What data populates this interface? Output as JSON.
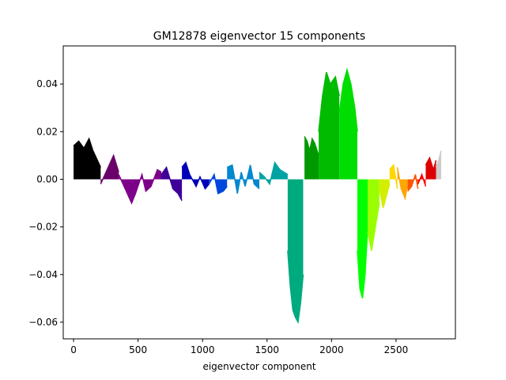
{
  "chart_data": {
    "type": "line",
    "title": "GM12878 eigenvector 15 components",
    "xlabel": "eigenvector component",
    "ylabel": "",
    "xlim": [
      -80,
      2960
    ],
    "ylim": [
      -0.067,
      0.056
    ],
    "xticks": [
      0,
      500,
      1000,
      1500,
      2000,
      2500
    ],
    "yticks": [
      -0.06,
      -0.04,
      -0.02,
      0.0,
      0.02,
      0.04
    ],
    "ytick_labels": [
      "−0.06",
      "−0.04",
      "−0.02",
      "0.00",
      "0.02",
      "0.04"
    ],
    "grid": false,
    "legend": "none",
    "fill_to_zero": true,
    "series": [
      {
        "color": "#000000",
        "x": [
          0,
          40,
          80,
          120,
          150,
          210
        ],
        "y": [
          0.014,
          0.016,
          0.013,
          0.017,
          0.012,
          0.005
        ]
      },
      {
        "color": "#6a006a",
        "x": [
          210,
          260,
          310,
          350
        ],
        "y": [
          -0.002,
          0.004,
          0.01,
          0.003
        ]
      },
      {
        "color": "#7d0089",
        "x": [
          350,
          400,
          450,
          480,
          530,
          560,
          600,
          650,
          680
        ],
        "y": [
          0.002,
          -0.004,
          -0.01,
          -0.006,
          0.002,
          -0.005,
          -0.003,
          0.004,
          0.003
        ]
      },
      {
        "color": "#3e0099",
        "x": [
          680,
          720,
          770,
          810,
          840
        ],
        "y": [
          0.002,
          0.005,
          -0.004,
          -0.006,
          -0.009
        ]
      },
      {
        "color": "#0000b8",
        "x": [
          840,
          870,
          900,
          950,
          980,
          1020,
          1050
        ],
        "y": [
          0.005,
          0.007,
          0.002,
          -0.003,
          0.001,
          -0.004,
          -0.002
        ]
      },
      {
        "color": "#0048dd",
        "x": [
          1050,
          1090,
          1120,
          1160,
          1190
        ],
        "y": [
          -0.002,
          0.002,
          -0.006,
          -0.005,
          -0.003
        ]
      },
      {
        "color": "#0088d0",
        "x": [
          1190,
          1230,
          1270,
          1300,
          1330,
          1370,
          1400,
          1440
        ],
        "y": [
          0.005,
          0.006,
          -0.006,
          0.003,
          -0.003,
          0.006,
          -0.002,
          -0.004
        ]
      },
      {
        "color": "#00a3a3",
        "x": [
          1440,
          1480,
          1520,
          1560,
          1600,
          1660
        ],
        "y": [
          0.003,
          0.001,
          -0.002,
          0.007,
          0.004,
          0.002
        ]
      },
      {
        "color": "#00aa7f",
        "x": [
          1660,
          1680,
          1700,
          1720,
          1740,
          1760,
          1780
        ],
        "y": [
          -0.03,
          -0.045,
          -0.055,
          -0.058,
          -0.06,
          -0.052,
          -0.04
        ]
      },
      {
        "color": "#009900",
        "x": [
          1790,
          1810,
          1830,
          1850,
          1870,
          1900
        ],
        "y": [
          0.018,
          0.016,
          0.012,
          0.017,
          0.015,
          0.01
        ]
      },
      {
        "color": "#00bb00",
        "x": [
          1900,
          1930,
          1960,
          1990,
          2030,
          2060
        ],
        "y": [
          0.02,
          0.035,
          0.045,
          0.04,
          0.043,
          0.035
        ]
      },
      {
        "color": "#00dd00",
        "x": [
          2060,
          2090,
          2120,
          2150,
          2180,
          2200
        ],
        "y": [
          0.028,
          0.04,
          0.046,
          0.04,
          0.03,
          0.02
        ]
      },
      {
        "color": "#00ff00",
        "x": [
          2200,
          2220,
          2240,
          2260,
          2280
        ],
        "y": [
          -0.03,
          -0.046,
          -0.05,
          -0.04,
          -0.02
        ]
      },
      {
        "color": "#99ff00",
        "x": [
          2280,
          2310,
          2340,
          2370
        ],
        "y": [
          -0.022,
          -0.03,
          -0.02,
          -0.01
        ]
      },
      {
        "color": "#d4ee00",
        "x": [
          2370,
          2400,
          2430,
          2450
        ],
        "y": [
          -0.004,
          -0.012,
          -0.006,
          -0.002
        ]
      },
      {
        "color": "#ffd700",
        "x": [
          2450,
          2480,
          2510
        ],
        "y": [
          0.004,
          0.006,
          -0.004
        ]
      },
      {
        "color": "#ffa600",
        "x": [
          2510,
          2540,
          2570,
          2590
        ],
        "y": [
          0.005,
          -0.004,
          -0.008,
          -0.002
        ]
      },
      {
        "color": "#ff5500",
        "x": [
          2590,
          2620,
          2650,
          2670
        ],
        "y": [
          -0.005,
          -0.003,
          0.002,
          -0.004
        ]
      },
      {
        "color": "#ff0000",
        "x": [
          2670,
          2700,
          2730
        ],
        "y": [
          -0.002,
          0.002,
          -0.003
        ]
      },
      {
        "color": "#dd0000",
        "x": [
          2730,
          2760,
          2790,
          2810
        ],
        "y": [
          0.006,
          0.009,
          0.004,
          0.008
        ]
      },
      {
        "color": "#cccccc",
        "x": [
          2810,
          2830,
          2850
        ],
        "y": [
          0.005,
          0.008,
          0.012
        ]
      }
    ]
  }
}
